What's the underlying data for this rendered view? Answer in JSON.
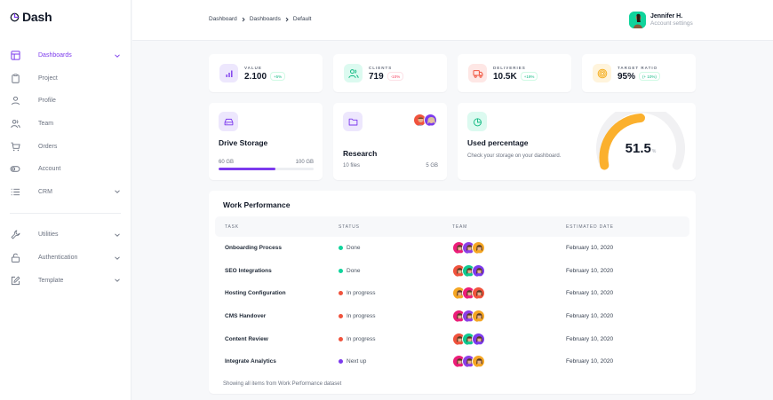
{
  "app": {
    "name": "Dash",
    "accent": "#7c3aed"
  },
  "sidebar": {
    "items": [
      {
        "label": "Dashboards",
        "icon": "layout-icon",
        "active": true,
        "chevron": true
      },
      {
        "label": "Project",
        "icon": "clipboard-icon",
        "active": false,
        "chevron": false
      },
      {
        "label": "Profile",
        "icon": "user-icon",
        "active": false,
        "chevron": false
      },
      {
        "label": "Team",
        "icon": "users-icon",
        "active": false,
        "chevron": false
      },
      {
        "label": "Orders",
        "icon": "cart-icon",
        "active": false,
        "chevron": false
      },
      {
        "label": "Account",
        "icon": "toggle-icon",
        "active": false,
        "chevron": false
      },
      {
        "label": "CRM",
        "icon": "list-icon",
        "active": false,
        "chevron": true
      }
    ],
    "secondary": [
      {
        "label": "Utilities",
        "icon": "tool-icon",
        "chevron": true
      },
      {
        "label": "Authentication",
        "icon": "lock-icon",
        "chevron": true
      },
      {
        "label": "Template",
        "icon": "edit-icon",
        "chevron": true
      }
    ]
  },
  "header": {
    "breadcrumb": [
      "Dashboard",
      "Dashboards",
      "Default"
    ],
    "separator": ">",
    "user": {
      "name": "Jennifer H.",
      "subtitle": "Account settings"
    }
  },
  "stats": [
    {
      "label": "VALUE",
      "value": "2.100",
      "change": "+5%",
      "trend": "up",
      "icon": "bar-chart-icon",
      "bg": "#ede7fd",
      "fg": "#7c3aed"
    },
    {
      "label": "CLIENTS",
      "value": "719",
      "change": "-10%",
      "trend": "down",
      "icon": "users-icon",
      "bg": "#dcfaf0",
      "fg": "#10b981"
    },
    {
      "label": "DELIVERIES",
      "value": "10.5K",
      "change": "+19%",
      "trend": "up",
      "icon": "truck-icon",
      "bg": "#fee7e5",
      "fg": "#f0533d"
    },
    {
      "label": "TARGET RATIO",
      "value": "95%",
      "change": "(+ 10%)",
      "trend": "up",
      "icon": "target-icon",
      "bg": "#fff4dc",
      "fg": "#f5b128"
    }
  ],
  "storage": {
    "title": "Drive Storage",
    "used": "60 GB",
    "total": "100 GB",
    "percent": 60
  },
  "research": {
    "title": "Research",
    "files": "10 files",
    "size": "5 GB"
  },
  "usage": {
    "title": "Used percentage",
    "description": "Check your storage on your dashboard.",
    "value": "51.5",
    "unit": "%",
    "gauge_color": "#fbb02d",
    "track_color": "#f1f1f3"
  },
  "work": {
    "title": "Work Performance",
    "columns": [
      "TASK",
      "STATUS",
      "TEAM",
      "ESTIMATED DATE"
    ],
    "rows": [
      {
        "task": "Onboarding Process",
        "status": "Done",
        "status_color": "#10d49c",
        "team": [
          "#ec1e79",
          "#8b3fe6",
          "#f5a623"
        ],
        "date": "February 10, 2020"
      },
      {
        "task": "SEO Integrations",
        "status": "Done",
        "status_color": "#10d49c",
        "team": [
          "#f0533d",
          "#10c98f",
          "#7c3aed"
        ],
        "date": "February 10, 2020"
      },
      {
        "task": "Hosting Configuration",
        "status": "In progress",
        "status_color": "#f0533d",
        "team": [
          "#f5a623",
          "#ec1e79",
          "#f0533d"
        ],
        "date": "February 10, 2020"
      },
      {
        "task": "CMS Handover",
        "status": "In progress",
        "status_color": "#f0533d",
        "team": [
          "#ec1e79",
          "#8b3fe6",
          "#f5a623"
        ],
        "date": "February 10, 2020"
      },
      {
        "task": "Content Review",
        "status": "In progress",
        "status_color": "#f0533d",
        "team": [
          "#f0533d",
          "#10c98f",
          "#7c3aed"
        ],
        "date": "February 10, 2020"
      },
      {
        "task": "Integrate Analytics",
        "status": "Next up",
        "status_color": "#7c3aed",
        "team": [
          "#ec1e79",
          "#8b3fe6",
          "#f5a623"
        ],
        "date": "February 10, 2020"
      }
    ],
    "footer": "Showing all items from Work Performance dataset"
  }
}
